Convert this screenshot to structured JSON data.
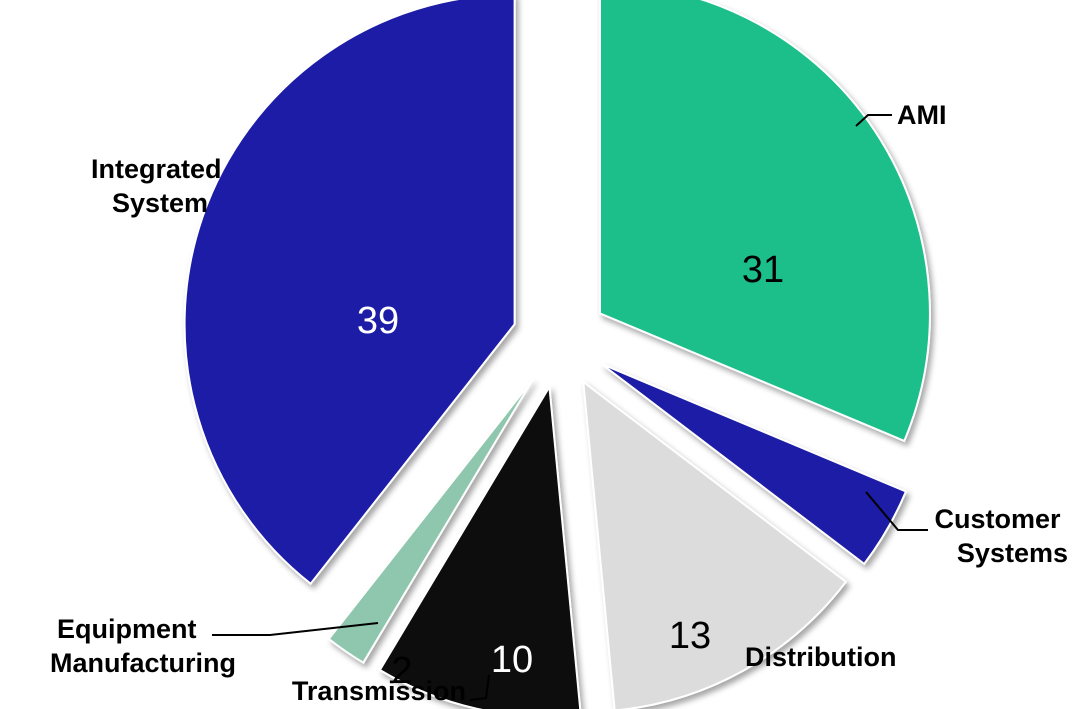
{
  "chart_data": {
    "type": "pie",
    "title": "",
    "legend": "none",
    "slices": [
      {
        "label": "AMI",
        "value": 31,
        "color": "#1fbf8a",
        "value_color": "#000000"
      },
      {
        "label": "Customer Systems",
        "value": 4,
        "color": "#1c1ca6",
        "value_color": "#ffffff"
      },
      {
        "label": "Distribution",
        "value": 13,
        "color": "#dcdcdc",
        "value_color": "#000000"
      },
      {
        "label": "Transmission",
        "value": 10,
        "color": "#0a0a0a",
        "value_color": "#ffffff"
      },
      {
        "label": "Equipment Manufacturing",
        "value": 2,
        "color": "#8fc7ae",
        "value_color": "#000000"
      },
      {
        "label": "Integrated System",
        "value": 39,
        "color": "#1c1ca6",
        "value_color": "#ffffff"
      }
    ],
    "label_lines": {
      "ami": [
        "AMI"
      ],
      "customer": [
        "Customer",
        "Systems"
      ],
      "distribution": [
        "Distribution"
      ],
      "transmission": [
        "Transmission"
      ],
      "equipment": [
        "Equipment",
        "Manufacturing"
      ],
      "integrated": [
        "Integrated",
        "System"
      ]
    },
    "shown_values": {
      "ami": "31",
      "distribution": "13",
      "transmission": "10",
      "equipment": "2",
      "integrated": "39"
    }
  }
}
